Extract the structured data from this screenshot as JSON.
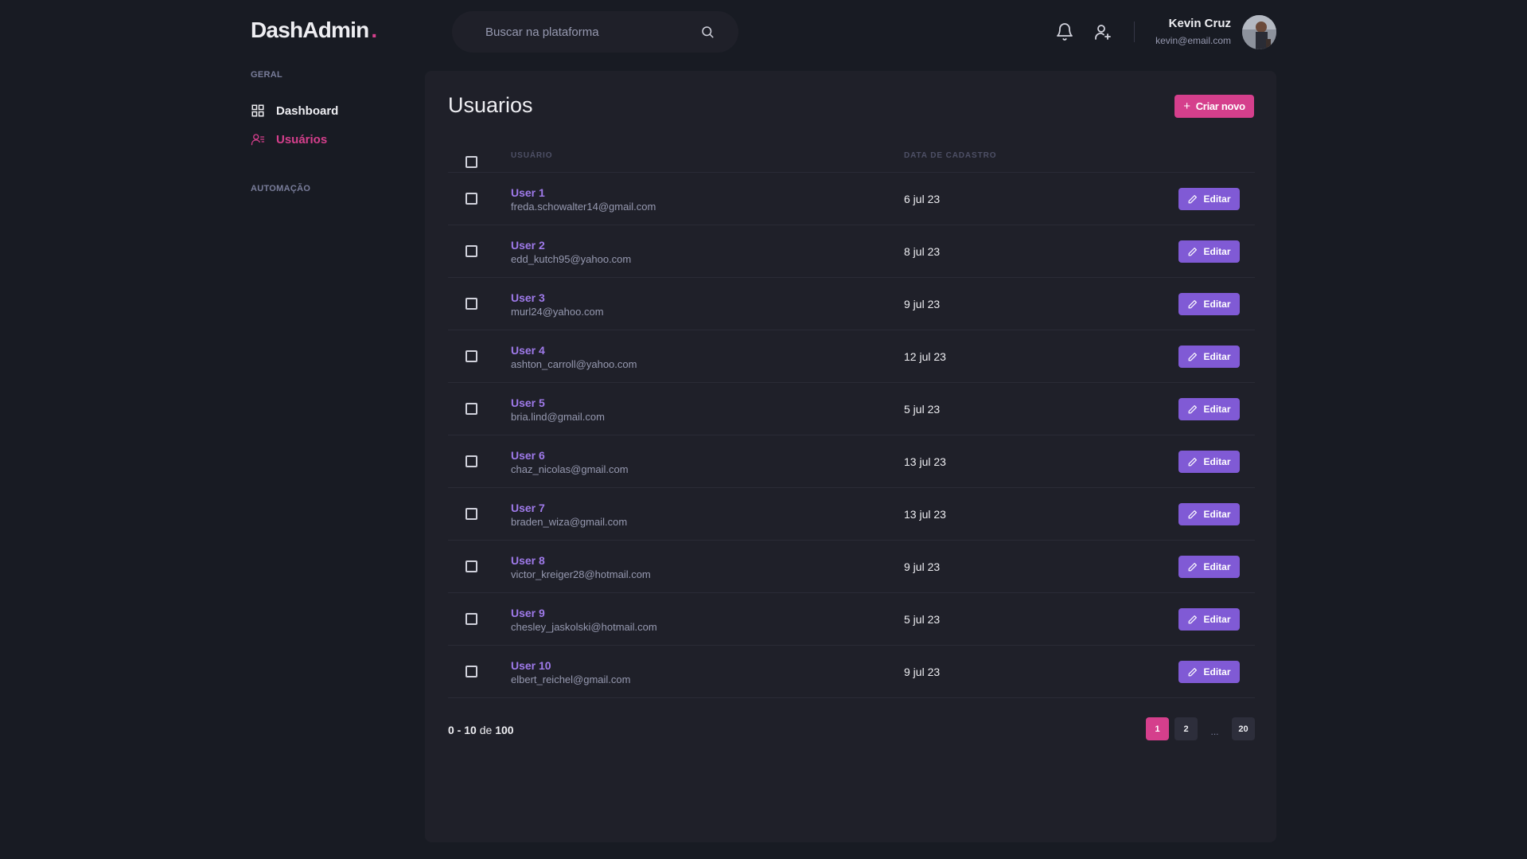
{
  "header": {
    "logo": "DashAdmin",
    "logo_dot": ".",
    "search_placeholder": "Buscar na plataforma",
    "user_name": "Kevin Cruz",
    "user_email": "kevin@email.com"
  },
  "sidebar": {
    "section_general": "GERAL",
    "items": [
      {
        "label": "Dashboard",
        "icon": "dashboard-grid-icon",
        "active": false
      },
      {
        "label": "Usuários",
        "icon": "users-list-icon",
        "active": true
      }
    ],
    "section_automation": "AUTOMAÇÃO"
  },
  "page": {
    "title": "Usuarios",
    "create_button": "Criar novo",
    "create_button_icon": "+"
  },
  "table": {
    "columns": {
      "user": "USUÁRIO",
      "date": "DATA DE CADASTRO"
    },
    "edit_label": "Editar",
    "rows": [
      {
        "name": "User 1",
        "email": "freda.schowalter14@gmail.com",
        "date": "6 jul 23"
      },
      {
        "name": "User 2",
        "email": "edd_kutch95@yahoo.com",
        "date": "8 jul 23"
      },
      {
        "name": "User 3",
        "email": "murl24@yahoo.com",
        "date": "9 jul 23"
      },
      {
        "name": "User 4",
        "email": "ashton_carroll@yahoo.com",
        "date": "12 jul 23"
      },
      {
        "name": "User 5",
        "email": "bria.lind@gmail.com",
        "date": "5 jul 23"
      },
      {
        "name": "User 6",
        "email": "chaz_nicolas@gmail.com",
        "date": "13 jul 23"
      },
      {
        "name": "User 7",
        "email": "braden_wiza@gmail.com",
        "date": "13 jul 23"
      },
      {
        "name": "User 8",
        "email": "victor_kreiger28@hotmail.com",
        "date": "9 jul 23"
      },
      {
        "name": "User 9",
        "email": "chesley_jaskolski@hotmail.com",
        "date": "5 jul 23"
      },
      {
        "name": "User 10",
        "email": "elbert_reichel@gmail.com",
        "date": "9 jul 23"
      }
    ]
  },
  "pagination": {
    "range_start": "0",
    "range_sep": " - ",
    "range_end": "10",
    "of_label": " de ",
    "total": "100",
    "pages": [
      "1",
      "2"
    ],
    "ellipsis": "...",
    "last_page": "20",
    "current": "1"
  },
  "colors": {
    "background": "#181b23",
    "panel": "#1f2029",
    "pink_accent": "#d53f8c",
    "purple_accent": "#805ad5",
    "user_link": "#9f7aea"
  }
}
